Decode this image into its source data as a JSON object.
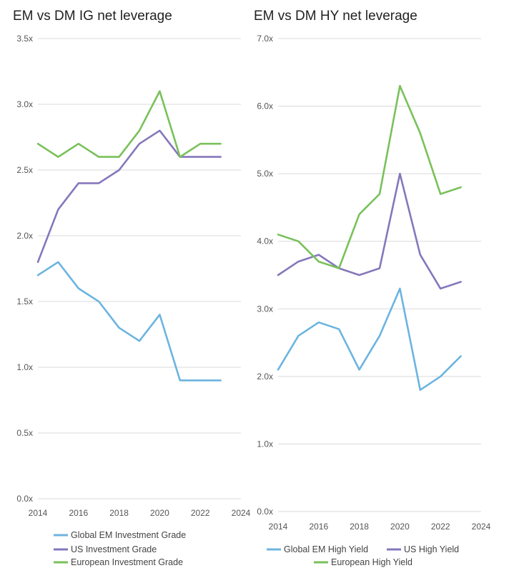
{
  "chart_data": [
    {
      "type": "line",
      "title": "EM vs DM IG net leverage",
      "xlabel": "",
      "ylabel": "",
      "x": [
        2014,
        2015,
        2016,
        2017,
        2018,
        2019,
        2020,
        2021,
        2022,
        2023
      ],
      "xlim": [
        2014,
        2024
      ],
      "xticks": [
        2014,
        2016,
        2018,
        2020,
        2022,
        2024
      ],
      "xtick_labels": [
        "2014",
        "2016",
        "2018",
        "2020",
        "2022",
        "2024"
      ],
      "ylim": [
        0,
        3.5
      ],
      "yticks": [
        0,
        0.5,
        1.0,
        1.5,
        2.0,
        2.5,
        3.0,
        3.5
      ],
      "ytick_labels": [
        "0.0x",
        "0.5x",
        "1.0x",
        "1.5x",
        "2.0x",
        "2.5x",
        "3.0x",
        "3.5x"
      ],
      "grid": true,
      "legend_position": "bottom",
      "series": [
        {
          "name": "Global EM Investment Grade",
          "color": "#6cb4e0",
          "values": [
            1.7,
            1.8,
            1.6,
            1.5,
            1.3,
            1.2,
            1.4,
            0.9,
            0.9,
            0.9
          ]
        },
        {
          "name": "US Investment Grade",
          "color": "#8577bc",
          "values": [
            1.8,
            2.2,
            2.4,
            2.4,
            2.5,
            2.7,
            2.8,
            2.6,
            2.6,
            2.6
          ]
        },
        {
          "name": "European Investment Grade",
          "color": "#79c15a",
          "values": [
            2.7,
            2.6,
            2.7,
            2.6,
            2.6,
            2.8,
            3.1,
            2.6,
            2.7,
            2.7
          ]
        }
      ]
    },
    {
      "type": "line",
      "title": "EM vs DM HY net leverage",
      "xlabel": "",
      "ylabel": "",
      "x": [
        2014,
        2015,
        2016,
        2017,
        2018,
        2019,
        2020,
        2021,
        2022,
        2023
      ],
      "xlim": [
        2014,
        2024
      ],
      "xticks": [
        2014,
        2016,
        2018,
        2020,
        2022,
        2024
      ],
      "xtick_labels": [
        "2014",
        "2016",
        "2018",
        "2020",
        "2022",
        "2024"
      ],
      "ylim": [
        0,
        7.0
      ],
      "yticks": [
        0,
        1.0,
        2.0,
        3.0,
        4.0,
        5.0,
        6.0,
        7.0
      ],
      "ytick_labels": [
        "0.0x",
        "1.0x",
        "2.0x",
        "3.0x",
        "4.0x",
        "5.0x",
        "6.0x",
        "7.0x"
      ],
      "grid": true,
      "legend_position": "bottom",
      "series": [
        {
          "name": "Global EM High Yield",
          "color": "#6cb4e0",
          "values": [
            2.1,
            2.6,
            2.8,
            2.7,
            2.1,
            2.6,
            3.3,
            1.8,
            2.0,
            2.3
          ]
        },
        {
          "name": "US High Yield",
          "color": "#8577bc",
          "values": [
            3.5,
            3.7,
            3.8,
            3.6,
            3.5,
            3.6,
            5.0,
            3.8,
            3.3,
            3.4
          ]
        },
        {
          "name": "European High Yield",
          "color": "#79c15a",
          "values": [
            4.1,
            4.0,
            3.7,
            3.6,
            4.4,
            4.7,
            6.3,
            5.6,
            4.7,
            4.8
          ]
        }
      ]
    }
  ]
}
